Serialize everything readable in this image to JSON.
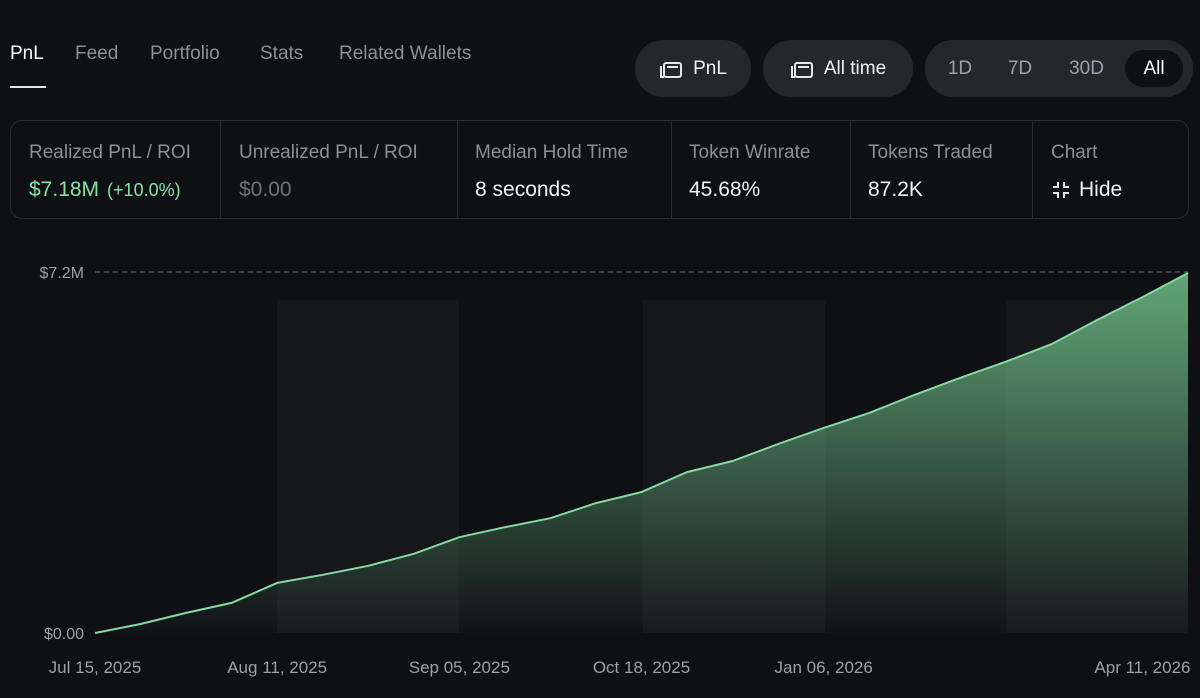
{
  "tabs": [
    "PnL",
    "Feed",
    "Portfolio",
    "Stats",
    "Related Wallets"
  ],
  "buttons": {
    "pnl": "PnL",
    "period": "All time"
  },
  "ranges": [
    "1D",
    "7D",
    "30D",
    "All"
  ],
  "stats": [
    {
      "label": "Realized PnL / ROI",
      "value": "$7.18M",
      "roi": "(+10.0%)"
    },
    {
      "label": "Unrealized PnL / ROI",
      "value": "$0.00"
    },
    {
      "label": "Median Hold Time",
      "value": "8 seconds"
    },
    {
      "label": "Token Winrate",
      "value": "45.68%"
    },
    {
      "label": "Tokens Traded",
      "value": "87.2K"
    },
    {
      "label": "Chart",
      "value": "Hide"
    }
  ],
  "chart_data": {
    "type": "area",
    "categories": [
      "Jul 15, 2025",
      null,
      null,
      null,
      "Aug 11, 2025",
      null,
      null,
      null,
      "Sep 05, 2025",
      null,
      null,
      null,
      "Oct 18, 2025",
      null,
      null,
      null,
      "Jan 06, 2026",
      null,
      null,
      null,
      null,
      null,
      null,
      "Apr 11, 2026",
      null
    ],
    "values": [
      0,
      0.18,
      0.4,
      0.6,
      1.0,
      1.16,
      1.34,
      1.58,
      1.91,
      2.11,
      2.29,
      2.59,
      2.81,
      3.21,
      3.43,
      3.77,
      4.09,
      4.39,
      4.75,
      5.09,
      5.41,
      5.76,
      6.24,
      6.7,
      7.18
    ],
    "color": "#86d9a0",
    "ylim": [
      0,
      7.2
    ],
    "yticks": [
      {
        "value": 0,
        "label": "$0.00"
      },
      {
        "value": 7.2,
        "label": "$7.2M"
      }
    ]
  }
}
